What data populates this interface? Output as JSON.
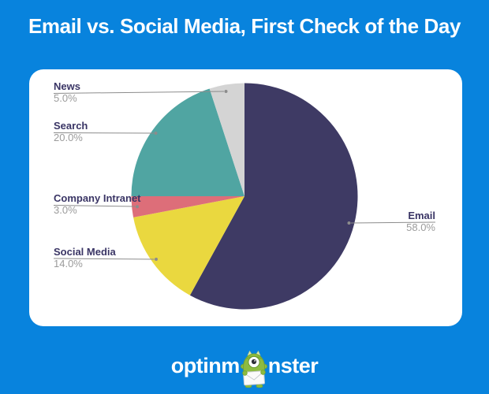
{
  "page": {
    "background_color": "#0883DD",
    "card_color": "#FFFFFF"
  },
  "title": "Email vs. Social Media, First Check of the Day",
  "chart_data": {
    "type": "pie",
    "title": "Email vs. Social Media, First Check of the Day",
    "start_angle_deg": 0,
    "direction": "clockwise",
    "legend_position": "callout-labels",
    "slices": [
      {
        "label": "Email",
        "value": 58.0,
        "pct_text": "58.0%",
        "color": "#3E3A64"
      },
      {
        "label": "Social Media",
        "value": 14.0,
        "pct_text": "14.0%",
        "color": "#EAD83F"
      },
      {
        "label": "Company Intranet",
        "value": 3.0,
        "pct_text": "3.0%",
        "color": "#DD6E79"
      },
      {
        "label": "Search",
        "value": 20.0,
        "pct_text": "20.0%",
        "color": "#50A5A2"
      },
      {
        "label": "News",
        "value": 5.0,
        "pct_text": "5.0%",
        "color": "#D4D4D4"
      }
    ],
    "label_name_color": "#3A3565",
    "label_pct_color": "#9B9B9B",
    "leader_line_color": "#8C8C8C"
  },
  "branding": {
    "logo_text_left": "optinm",
    "logo_text_right": "nster",
    "mascot": "optinmonster-monster-mascot",
    "logo_color": "#FFFFFF",
    "mascot_green": "#8DBB40"
  }
}
